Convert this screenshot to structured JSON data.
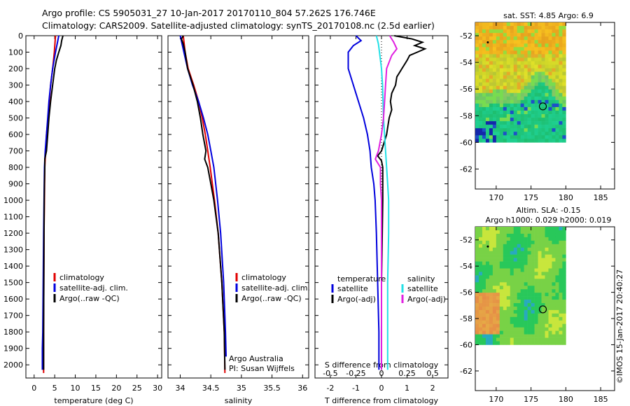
{
  "header": {
    "line1": "Argo profile: CS 5905031_27 10-Jan-2017 20170110_804 57.262S 176.746E",
    "line2": "Climatology: CARS2009. Satellite-adjusted climatology: synTS_20170108.nc (2.5d earlier)"
  },
  "credit": "©IMOS 15-Jan-2017 20:40:27",
  "colors": {
    "climatology": "#e00000",
    "satellite": "#0000dd",
    "argo": "#000000",
    "s_satellite": "#22e0e6",
    "s_argo": "#e020e0"
  },
  "chart_data": [
    {
      "type": "line",
      "name": "temperature-profile",
      "xlabel": "temperature (deg C)",
      "xlim": [
        -2,
        31
      ],
      "ylim": [
        2080,
        0
      ],
      "xticks": [
        0,
        5,
        10,
        15,
        20,
        25,
        30
      ],
      "yticks": [
        0,
        100,
        200,
        300,
        400,
        500,
        600,
        700,
        800,
        900,
        1000,
        1100,
        1200,
        1300,
        1400,
        1500,
        1600,
        1700,
        1800,
        1900,
        2000
      ],
      "legend": [
        "climatology",
        "satellite-adj. clim.",
        "Argo(..raw -QC)"
      ],
      "series": [
        {
          "name": "climatology",
          "color": "#e00000",
          "depth": [
            0,
            100,
            200,
            300,
            400,
            500,
            600,
            700,
            800,
            1000,
            1200,
            1500,
            1800,
            2000,
            2050
          ],
          "values": [
            5.2,
            4.9,
            4.5,
            4.0,
            3.7,
            3.4,
            3.0,
            2.8,
            2.6,
            2.5,
            2.4,
            2.35,
            2.3,
            2.3,
            2.3
          ]
        },
        {
          "name": "satellite-adj. clim.",
          "color": "#0000dd",
          "depth": [
            0,
            100,
            200,
            300,
            400,
            500,
            600,
            700,
            800,
            1000,
            1200,
            1500,
            1800,
            1900,
            2030
          ],
          "values": [
            6.0,
            5.2,
            4.5,
            4.0,
            3.6,
            3.3,
            3.0,
            2.7,
            2.5,
            2.4,
            2.3,
            2.2,
            2.1,
            2.0,
            2.0
          ]
        },
        {
          "name": "Argo(..raw -QC)",
          "color": "#000000",
          "depth": [
            0,
            30,
            60,
            100,
            150,
            200,
            300,
            400,
            500,
            600,
            700,
            750,
            800,
            900,
            1000,
            1200,
            1500,
            1800,
            2000,
            2030
          ],
          "values": [
            7.0,
            6.7,
            6.5,
            6.0,
            5.4,
            5.0,
            4.5,
            4.0,
            3.6,
            3.3,
            3.0,
            2.6,
            2.6,
            2.5,
            2.45,
            2.4,
            2.35,
            2.3,
            2.3,
            2.3
          ]
        }
      ]
    },
    {
      "type": "line",
      "name": "salinity-profile",
      "xlabel": "salinity",
      "xlim": [
        33.8,
        36.1
      ],
      "ylim": [
        2080,
        0
      ],
      "xticks": [
        34,
        34.5,
        35,
        35.5,
        36
      ],
      "legend": [
        "climatology",
        "satellite-adj. clim.",
        "Argo(..raw -QC)"
      ],
      "annotation": [
        "Argo Australia",
        "PI: Susan Wijffels"
      ],
      "series": [
        {
          "name": "climatology",
          "color": "#e00000",
          "depth": [
            0,
            100,
            200,
            300,
            400,
            500,
            600,
            700,
            800,
            1000,
            1200,
            1500,
            1800,
            2050
          ],
          "values": [
            34.05,
            34.08,
            34.13,
            34.22,
            34.3,
            34.36,
            34.41,
            34.45,
            34.49,
            34.56,
            34.62,
            34.68,
            34.72,
            34.73
          ]
        },
        {
          "name": "satellite-adj. clim.",
          "color": "#0000dd",
          "depth": [
            0,
            100,
            200,
            300,
            400,
            500,
            600,
            700,
            800,
            1000,
            1200,
            1500,
            1800,
            1950
          ],
          "values": [
            34.0,
            34.06,
            34.12,
            34.2,
            34.3,
            34.38,
            34.45,
            34.5,
            34.55,
            34.61,
            34.66,
            34.71,
            34.74,
            34.75
          ]
        },
        {
          "name": "Argo(..raw -QC)",
          "color": "#000000",
          "depth": [
            0,
            20,
            50,
            100,
            150,
            200,
            300,
            400,
            500,
            600,
            700,
            750,
            800,
            900,
            1000,
            1200,
            1500,
            1800,
            2030
          ],
          "values": [
            34.05,
            34.02,
            34.05,
            34.08,
            34.1,
            34.12,
            34.21,
            34.28,
            34.33,
            34.37,
            34.42,
            34.4,
            34.45,
            34.5,
            34.55,
            34.62,
            34.68,
            34.72,
            34.73
          ]
        }
      ]
    },
    {
      "type": "line",
      "name": "difference-profile",
      "xlabel": "T difference from climatology",
      "xlabel_top": "S difference from climatology",
      "xlim": [
        -2.6,
        2.6
      ],
      "ylim": [
        2080,
        0
      ],
      "xticks_T": [
        -2,
        -1,
        0,
        1,
        2
      ],
      "xticks_S": [
        -0.5,
        -0.25,
        0,
        0.25,
        0.5
      ],
      "legend_left_title": "temperature",
      "legend_right_title": "salinity",
      "legend": [
        "satellite",
        "Argo(-adj)",
        "satellite",
        "Argo(-adj)"
      ],
      "series": [
        {
          "name": "satellite",
          "quantity": "T",
          "color": "#0000dd",
          "depth": [
            0,
            30,
            60,
            100,
            200,
            300,
            400,
            500,
            600,
            700,
            800,
            900,
            1000,
            1200,
            1500,
            1800,
            2030
          ],
          "values": [
            -1.0,
            -0.8,
            -1.1,
            -1.3,
            -1.3,
            -1.1,
            -0.9,
            -0.7,
            -0.55,
            -0.45,
            -0.4,
            -0.3,
            -0.25,
            -0.2,
            -0.15,
            -0.1,
            -0.1
          ]
        },
        {
          "name": "Argo(-adj)",
          "quantity": "T",
          "color": "#000000",
          "depth": [
            0,
            20,
            40,
            60,
            80,
            100,
            120,
            150,
            200,
            250,
            300,
            350,
            400,
            450,
            500,
            550,
            600,
            650,
            700,
            730,
            760,
            800,
            900,
            1000,
            1500,
            2030
          ],
          "values": [
            0.5,
            1.2,
            1.6,
            1.3,
            1.7,
            1.4,
            1.1,
            1.0,
            0.8,
            0.6,
            0.55,
            0.4,
            0.35,
            0.4,
            0.3,
            0.25,
            0.2,
            0.1,
            0.0,
            -0.15,
            0.0,
            0.05,
            0.05,
            0.05,
            0.0,
            0.0
          ]
        },
        {
          "name": "satellite",
          "quantity": "S",
          "color": "#22e0e6",
          "depth": [
            0,
            50,
            100,
            200,
            300,
            500,
            700,
            800,
            900,
            1000,
            1200,
            1500,
            1800,
            2030
          ],
          "values": [
            -0.05,
            -0.03,
            -0.02,
            0.0,
            0.01,
            0.02,
            0.04,
            0.05,
            0.06,
            0.07,
            0.07,
            0.06,
            0.06,
            0.06
          ]
        },
        {
          "name": "Argo(-adj)",
          "quantity": "S",
          "color": "#e020e0",
          "depth": [
            0,
            40,
            80,
            120,
            200,
            300,
            400,
            500,
            600,
            700,
            750,
            800,
            900,
            1000,
            1500,
            2030
          ],
          "values": [
            0.08,
            0.12,
            0.15,
            0.1,
            0.05,
            0.04,
            0.03,
            0.02,
            0.0,
            -0.03,
            -0.06,
            -0.01,
            -0.01,
            0.0,
            0.0,
            0.0
          ]
        }
      ]
    },
    {
      "type": "heatmap",
      "name": "sst-map",
      "title": "sat. SST: 4.85 Argo: 6.9",
      "xlim": [
        167,
        187
      ],
      "ylim": [
        -63.5,
        -51
      ],
      "xticks": [
        170,
        175,
        180,
        185
      ],
      "yticks": [
        -52,
        -54,
        -56,
        -58,
        -60,
        -62
      ],
      "data_extent": {
        "lon": [
          167,
          180
        ],
        "lat": [
          -60,
          -51
        ]
      },
      "marker_circle": [
        176.7,
        -57.3
      ],
      "marker_dot": [
        168.8,
        -52.5
      ]
    },
    {
      "type": "heatmap",
      "name": "sla-map",
      "title_lines": [
        "Altim. SLA: -0.15",
        "Argo h1000: 0.029 h2000: 0.019"
      ],
      "xlim": [
        167,
        187
      ],
      "ylim": [
        -63.5,
        -51
      ],
      "xticks": [
        170,
        175,
        180,
        185
      ],
      "yticks": [
        -52,
        -54,
        -56,
        -58,
        -60,
        -62
      ],
      "data_extent": {
        "lon": [
          167,
          180
        ],
        "lat": [
          -60,
          -51
        ]
      },
      "marker_circle": [
        176.7,
        -57.3
      ],
      "marker_dot": [
        168.8,
        -52.5
      ]
    }
  ]
}
